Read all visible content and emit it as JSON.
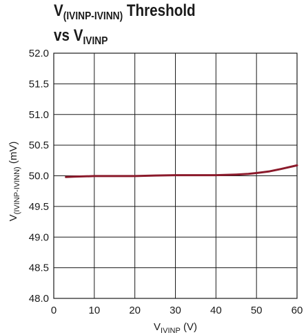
{
  "title": {
    "line1_main": "V",
    "line1_sub": "(IVINP-IVINN)",
    "line1_rest": " Threshold",
    "line2_main": "vs V",
    "line2_sub": "IVINP"
  },
  "chart_data": {
    "type": "line",
    "xlabel_main": "V",
    "xlabel_sub": "IVINP",
    "xlabel_unit": " (V)",
    "ylabel_main": "V",
    "ylabel_sub": "(IVINP-IVINN)",
    "ylabel_unit": " (mV)",
    "xlim": [
      0,
      60
    ],
    "ylim": [
      48.0,
      52.0
    ],
    "x_ticks": [
      0,
      10,
      20,
      30,
      40,
      50,
      60
    ],
    "y_ticks": [
      48.0,
      48.5,
      49.0,
      49.5,
      50.0,
      50.5,
      51.0,
      51.5,
      52.0
    ],
    "y_tick_labels": [
      "48.0",
      "48.5",
      "49.0",
      "49.5",
      "50.0",
      "50.5",
      "51.0",
      "51.5",
      "52.0"
    ],
    "x_tick_labels": [
      "0",
      "10",
      "20",
      "30",
      "40",
      "50",
      "60"
    ],
    "grid": true,
    "series": [
      {
        "color": "#8b1a2b",
        "x": [
          3,
          5,
          10,
          15,
          20,
          25,
          30,
          35,
          40,
          45,
          48,
          50,
          53,
          56,
          60
        ],
        "y": [
          49.98,
          49.985,
          49.995,
          49.995,
          49.995,
          50.005,
          50.01,
          50.01,
          50.01,
          50.02,
          50.03,
          50.045,
          50.07,
          50.11,
          50.17
        ]
      }
    ]
  }
}
